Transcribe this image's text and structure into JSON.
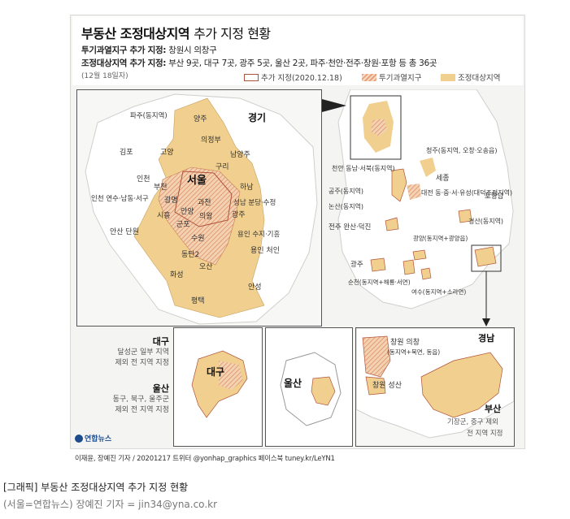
{
  "header": {
    "title": "부동산 조정대상지역",
    "title_sub": "추가 지정 현황",
    "line1_label": "투기과열지구 추가 지정:",
    "line1_value": "창원시 의창구",
    "line2_label": "조정대상지역 추가 지정:",
    "line2_value": "부산 9곳, 대구 7곳, 광주 5곳, 울산 2곳, 파주·천안·전주·창원·포항 등 총 36곳",
    "date": "(12월 18일자)"
  },
  "legend": {
    "added": "추가 지정(2020.12.18)",
    "speculative": "투기과열지구",
    "adjusted": "조정대상지역"
  },
  "colors": {
    "adjusted_fill": "#f0cf8f",
    "speculative_stripe": "#e8a17a",
    "added_border": "#b0533a",
    "land": "#ffffff",
    "sea": "#f4f4f2"
  },
  "gyeonggi": {
    "region": "경기",
    "seoul": "서울",
    "labels": [
      "파주(동지역)",
      "양주",
      "의정부",
      "김포",
      "고양",
      "남양주",
      "구리",
      "인천",
      "부천",
      "광명",
      "하남",
      "과천",
      "인천 연수·남동·서구",
      "시흥",
      "안양",
      "성남 분당·수정",
      "군포",
      "의왕",
      "광주",
      "안산 단원",
      "수원",
      "용인 수지·기흥",
      "동탄2",
      "용인 처인",
      "오산",
      "화성",
      "안성",
      "평택"
    ]
  },
  "korea": {
    "labels": [
      "청주(동지역, 오창·오송읍)",
      "천안 동남·서북(동지역)",
      "세종",
      "공주(동지역)",
      "대전 동·중·서·유성(대덕조정지역)",
      "논산(동지역)",
      "포항남",
      "경산(동지역)",
      "전주 완산·덕진",
      "광양(동지역+광양읍)",
      "광주",
      "순천(동지역+해룡·서면)",
      "여수(동지역+소라면)"
    ]
  },
  "daegu": {
    "title": "대구",
    "desc1": "달성군 일부 지역",
    "desc2": "제외 전 지역 지정",
    "map_label": "대구"
  },
  "ulsan": {
    "title": "울산",
    "desc1": "동구, 북구, 울주군",
    "desc2": "제외 전 지역 지정",
    "map_label": "울산"
  },
  "gyeongnam": {
    "region": "경남",
    "changwon1": "창원 의창",
    "changwon1_sub": "(동지역+북면, 동읍)",
    "changwon2": "창원 성산",
    "busan": "부산",
    "busan_desc1": "기장군, 중구 제외",
    "busan_desc2": "전 지역 지정"
  },
  "logo": "연합뉴스",
  "credit": "이재윤, 장예진 기자 / 20201217 트위터 @yonhap_graphics  페이스북 tuney.kr/LeYN1",
  "caption": {
    "line1": "[그래픽] 부동산 조정대상지역 추가 지정 현황",
    "line2": "(서울=연합뉴스) 장예진 기자 = jin34@yna.co.kr"
  }
}
